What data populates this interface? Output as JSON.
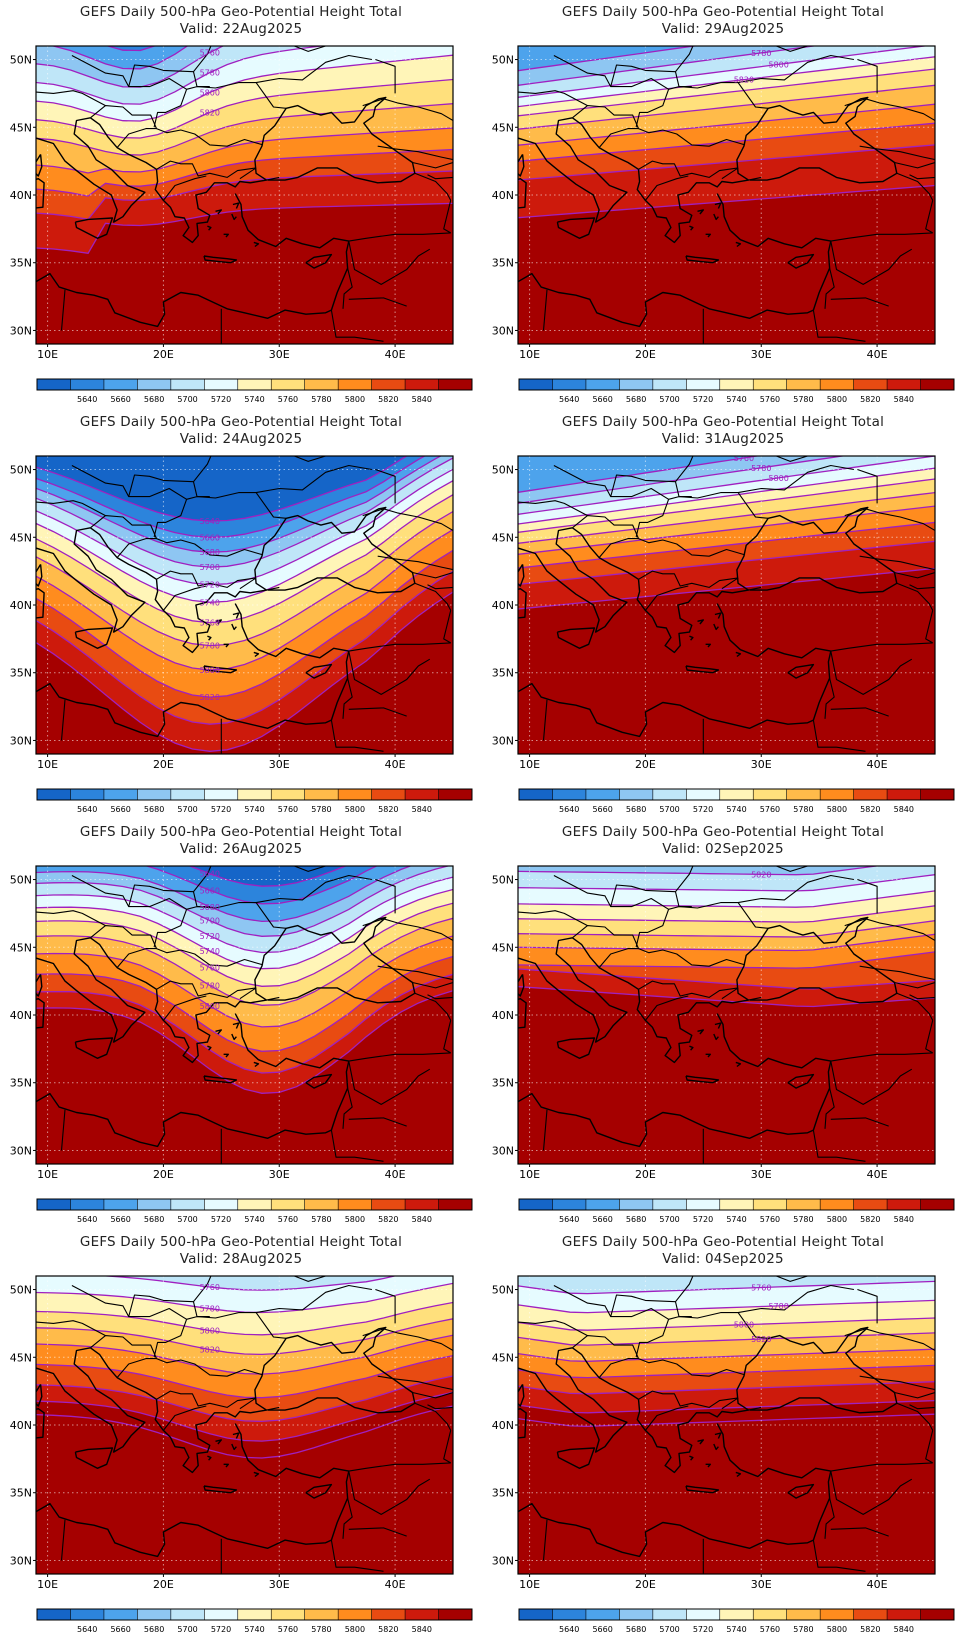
{
  "panels": [
    {
      "title": "GEFS Daily 500-hPa Geo-Potential Height Total",
      "valid": "Valid: 22Aug2025",
      "contour_labels": [
        "5720",
        "5740",
        "5760",
        "5780",
        "5800",
        "5820"
      ]
    },
    {
      "title": "GEFS Daily 500-hPa Geo-Potential Height Total",
      "valid": "Valid: 29Aug2025",
      "contour_labels": [
        "5760",
        "5780",
        "5800",
        "5820"
      ]
    },
    {
      "title": "GEFS Daily 500-hPa Geo-Potential Height Total",
      "valid": "Valid: 24Aug2025",
      "contour_labels": [
        "5640",
        "5660",
        "5680",
        "5700",
        "5720",
        "5740",
        "5760",
        "5780",
        "5800",
        "5820"
      ]
    },
    {
      "title": "GEFS Daily 500-hPa Geo-Potential Height Total",
      "valid": "Valid: 31Aug2025",
      "contour_labels": [
        "5760",
        "5780",
        "5800"
      ]
    },
    {
      "title": "GEFS Daily 500-hPa Geo-Potential Height Total",
      "valid": "Valid: 26Aug2025",
      "contour_labels": [
        "5640",
        "5660",
        "5680",
        "5700",
        "5720",
        "5740",
        "5760",
        "5780",
        "5800"
      ]
    },
    {
      "title": "GEFS Daily 500-hPa Geo-Potential Height Total",
      "valid": "Valid: 02Sep2025",
      "contour_labels": [
        "5800",
        "5820"
      ]
    },
    {
      "title": "GEFS Daily 500-hPa Geo-Potential Height Total",
      "valid": "Valid: 28Aug2025",
      "contour_labels": [
        "5740",
        "5760",
        "5780",
        "5800",
        "5820"
      ]
    },
    {
      "title": "GEFS Daily 500-hPa Geo-Potential Height Total",
      "valid": "Valid: 04Sep2025",
      "contour_labels": [
        "5740",
        "5760",
        "5780",
        "5800",
        "5820"
      ]
    }
  ],
  "axes": {
    "lat_labels": [
      "50N",
      "45N",
      "40N",
      "35N",
      "30N"
    ],
    "lon_labels": [
      "10E",
      "20E",
      "30E",
      "40E"
    ]
  },
  "colorbar": {
    "labels": [
      "5640",
      "5660",
      "5680",
      "5700",
      "5720",
      "5740",
      "5760",
      "5780",
      "5800",
      "5820",
      "5840"
    ],
    "colors": [
      "#1565c8",
      "#2c84dc",
      "#4da3ec",
      "#8ec6f2",
      "#bfe6f8",
      "#e6fbff",
      "#fff5b8",
      "#ffe07c",
      "#ffbb4a",
      "#ff8c1e",
      "#e84b12",
      "#cd1a0c",
      "#a50000"
    ]
  },
  "style": {
    "contour_line": "#a020c0",
    "coast": "#000000",
    "grid": "#ffffff"
  }
}
